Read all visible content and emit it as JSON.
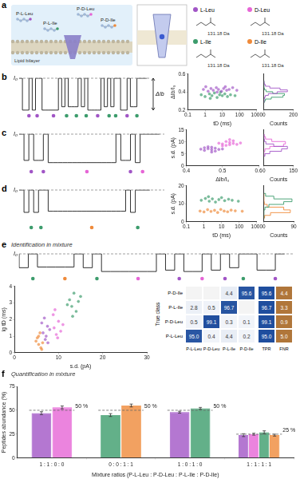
{
  "diagram": {
    "panel": "a",
    "peptides": [
      "P-L-Leu",
      "P-D-Leu",
      "P-L-Ile",
      "P-D-Ile"
    ],
    "membrane": "Lipid bilayer",
    "molecules": [
      {
        "name": "L-Leu",
        "mass": "131.18 Da",
        "color": "#a155c6"
      },
      {
        "name": "D-Leu",
        "mass": "131.18 Da",
        "color": "#e665d6"
      },
      {
        "name": "L-Ile",
        "mass": "131.18 Da",
        "color": "#3c9c6c"
      },
      {
        "name": "D-Ile",
        "mass": "131.18 Da",
        "color": "#ef8a3a"
      }
    ]
  },
  "chart_data": [
    {
      "panel": "b",
      "type": "trace",
      "annotations": [
        "I₀",
        "ΔIb"
      ],
      "baseline": 1,
      "tick_labels": false,
      "values": [
        1,
        1,
        0.62,
        0.62,
        1,
        0.62,
        1,
        1,
        0.62,
        0.62,
        0.62,
        0.62,
        0.62,
        1,
        0.66,
        1,
        0.66,
        0.66,
        0.66,
        1,
        0.66,
        1,
        0.62,
        0.62,
        0.62,
        0.62,
        1,
        0.66,
        1,
        0.66,
        1,
        1,
        0.62,
        0.62,
        1,
        0.66,
        0.66,
        1,
        1,
        1
      ],
      "events": {
        "x": [
          3,
          5.5,
          10.5,
          14.5,
          17.5,
          20.5,
          24,
          27.5,
          29.5,
          33,
          36
        ],
        "colors": [
          "#a155c6",
          "#a155c6",
          "#a155c6",
          "#3c9c6c",
          "#3c9c6c",
          "#3c9c6c",
          "#a155c6",
          "#3c9c6c",
          "#3c9c6c",
          "#a155c6",
          "#3c9c6c"
        ]
      }
    },
    {
      "type": "scatter",
      "x_label": "tD (ms)",
      "y_label": "ΔIb/I₀",
      "log": "x",
      "grid": false,
      "xlim": [
        0.1,
        1000
      ],
      "xticks": [
        0.1,
        1,
        10,
        100,
        1000
      ],
      "ylim": [
        0.2,
        0.6
      ],
      "yticks": [
        0.2,
        0.4,
        0.6
      ],
      "series": [
        {
          "color": "#a155c6",
          "x": [
            0.8,
            1.5,
            2.2,
            3,
            4.5,
            6,
            9,
            12,
            18,
            25,
            40,
            70,
            1.1,
            5,
            15
          ],
          "values": [
            0.43,
            0.41,
            0.44,
            0.42,
            0.45,
            0.43,
            0.41,
            0.44,
            0.42,
            0.43,
            0.45,
            0.42,
            0.46,
            0.4,
            0.46
          ]
        },
        {
          "color": "#3c9c6c",
          "x": [
            0.6,
            1,
            1.8,
            2.5,
            3.5,
            5,
            7,
            10,
            14,
            20,
            30,
            55,
            2,
            8
          ],
          "values": [
            0.37,
            0.35,
            0.38,
            0.36,
            0.39,
            0.34,
            0.37,
            0.36,
            0.38,
            0.35,
            0.37,
            0.36,
            0.33,
            0.4
          ]
        }
      ]
    },
    {
      "type": "histogram",
      "orientation": "horizontal",
      "x_label": "Counts",
      "tick_labels": "x",
      "grid": false,
      "xlim": [
        0,
        200
      ],
      "xticks": [
        0,
        200
      ],
      "ylim": [
        0.2,
        0.6
      ],
      "bins": [
        0.28,
        0.3,
        0.32,
        0.34,
        0.36,
        0.38,
        0.4,
        0.42,
        0.44,
        0.46,
        0.48,
        0.5,
        0.52
      ],
      "series": [
        {
          "color": "#a155c6",
          "values": [
            0,
            1,
            3,
            10,
            30,
            90,
            160,
            110,
            40,
            10,
            2,
            0
          ]
        },
        {
          "color": "#3c9c6c",
          "values": [
            2,
            10,
            50,
            130,
            140,
            60,
            15,
            4,
            1,
            0,
            0,
            0
          ]
        }
      ]
    },
    {
      "panel": "c",
      "type": "trace",
      "annotations": [
        "I₀"
      ],
      "baseline": 1,
      "tick_labels": false,
      "values": [
        1,
        1,
        0.53,
        1,
        0.53,
        0.53,
        1,
        0.49,
        0.49,
        0.49,
        0.49,
        0.49,
        0.49,
        0.49,
        0.49,
        0.49,
        0.49,
        0.49,
        0.49,
        0.49,
        0.49,
        1,
        0.53,
        0.53,
        1,
        0.49,
        1,
        1,
        1,
        1
      ],
      "events": {
        "x": [
          2.5,
          5,
          14,
          23,
          25.5
        ],
        "colors": [
          "#a155c6",
          "#a155c6",
          "#e665d6",
          "#a155c6",
          "#e665d6"
        ]
      }
    },
    {
      "type": "scatter",
      "x_label": "ΔIb/I₀",
      "y_label": "s.d. (pA)",
      "grid": false,
      "xlim": [
        0.4,
        0.6
      ],
      "xticks": [
        0.4,
        0.5,
        0.6
      ],
      "ylim": [
        0,
        15
      ],
      "yticks": [
        0,
        5,
        10,
        15
      ],
      "series": [
        {
          "color": "#a155c6",
          "x": [
            0.45,
            0.46,
            0.47,
            0.47,
            0.48,
            0.46,
            0.48,
            0.49,
            0.45,
            0.47,
            0.5,
            0.44
          ],
          "values": [
            6.5,
            7.2,
            6.8,
            7.8,
            6.2,
            8,
            7.4,
            6.9,
            7.6,
            5.8,
            7.1,
            7
          ]
        },
        {
          "color": "#e665d6",
          "x": [
            0.5,
            0.51,
            0.52,
            0.52,
            0.53,
            0.51,
            0.54,
            0.5,
            0.53,
            0.55,
            0.52,
            0.49
          ],
          "values": [
            9.2,
            8.6,
            9.8,
            8.9,
            9.4,
            10.2,
            9,
            8.4,
            10.5,
            9.6,
            11,
            9.5
          ]
        }
      ]
    },
    {
      "type": "histogram",
      "orientation": "horizontal",
      "x_label": "Counts",
      "tick_labels": "x",
      "grid": false,
      "xlim": [
        0,
        150
      ],
      "xticks": [
        0,
        150
      ],
      "ylim": [
        0,
        15
      ],
      "bins": [
        4,
        5,
        6,
        7,
        8,
        9,
        10,
        11,
        12,
        13
      ],
      "series": [
        {
          "color": "#a155c6",
          "values": [
            5,
            30,
            90,
            120,
            50,
            10,
            2,
            0,
            0
          ]
        },
        {
          "color": "#e665d6",
          "values": [
            0,
            0,
            5,
            30,
            100,
            110,
            40,
            8,
            1
          ]
        }
      ]
    },
    {
      "panel": "d",
      "type": "trace",
      "annotations": [
        "I₀"
      ],
      "baseline": 1,
      "tick_labels": false,
      "values": [
        1,
        1,
        0.6,
        1,
        0.6,
        1,
        1,
        0.62,
        0.62,
        0.62,
        0.62,
        0.62,
        0.62,
        0.62,
        0.62,
        0.62,
        0.62,
        0.62,
        0.62,
        0.62,
        0.62,
        0.62,
        0.62,
        1,
        0.6,
        1,
        1,
        1
      ],
      "events": {
        "x": [
          2.5,
          4.5,
          15,
          24.5
        ],
        "colors": [
          "#3c9c6c",
          "#3c9c6c",
          "#ef8a3a",
          "#3c9c6c"
        ]
      }
    },
    {
      "type": "scatter",
      "x_label": "tD (ms)",
      "y_label": "s.d. (pA)",
      "log": "x",
      "grid": false,
      "xlim": [
        0.1,
        1000
      ],
      "xticks": [
        0.1,
        1,
        10,
        100,
        1000
      ],
      "ylim": [
        0,
        20
      ],
      "yticks": [
        0,
        10,
        20
      ],
      "series": [
        {
          "color": "#3c9c6c",
          "x": [
            0.7,
            1.2,
            2,
            3,
            4.5,
            7,
            10,
            15,
            25,
            40,
            90,
            1.8
          ],
          "values": [
            12,
            13,
            11.5,
            12.8,
            11,
            12.4,
            13.5,
            11.8,
            12.6,
            12,
            11.5,
            14
          ]
        },
        {
          "color": "#ef8a3a",
          "x": [
            0.6,
            1,
            1.6,
            2.5,
            4,
            6,
            9,
            14,
            22,
            35,
            60,
            150
          ],
          "values": [
            6,
            5.5,
            6.8,
            5.8,
            6.4,
            5.2,
            6.9,
            6,
            5.6,
            6.5,
            6.1,
            5.9
          ]
        }
      ]
    },
    {
      "type": "histogram",
      "orientation": "horizontal",
      "x_label": "Counts",
      "tick_labels": "x",
      "grid": false,
      "xlim": [
        0,
        90
      ],
      "xticks": [
        0,
        90
      ],
      "ylim": [
        0,
        20
      ],
      "bins": [
        2,
        3.5,
        5,
        6.5,
        8,
        9.5,
        11,
        12.5,
        14,
        15.5
      ],
      "series": [
        {
          "color": "#3c9c6c",
          "values": [
            0,
            0,
            0,
            3,
            15,
            60,
            85,
            30,
            5
          ]
        },
        {
          "color": "#ef8a3a",
          "values": [
            2,
            20,
            80,
            60,
            10,
            1,
            0,
            0,
            0
          ]
        }
      ]
    },
    {
      "panel": "e",
      "title": "Identification in mixture",
      "type": "trace",
      "annotations": [
        "I₀"
      ],
      "baseline": 1,
      "tick_labels": false,
      "values": [
        1,
        0.6,
        1,
        0.62,
        0.62,
        0.62,
        0.62,
        1,
        0.6,
        1,
        0.49,
        0.49,
        0.49,
        0.49,
        0.49,
        0.49,
        1,
        0.53,
        1,
        0.49,
        0.49,
        1,
        0.53,
        1,
        0.6,
        1,
        1,
        0.53,
        0.53,
        1
      ],
      "events": {
        "x": [
          1.5,
          5,
          8.5,
          13,
          17.5,
          20,
          22.5,
          24.5,
          28
        ],
        "colors": [
          "#3c9c6c",
          "#ef8a3a",
          "#3c9c6c",
          "#e665d6",
          "#a155c6",
          "#e665d6",
          "#a155c6",
          "#3c9c6c",
          "#a155c6"
        ]
      }
    },
    {
      "type": "scatter",
      "x_label": "s.d. (pA)",
      "y_label": "lg tD (ms)",
      "grid": false,
      "xlim": [
        0,
        30
      ],
      "xticks": [
        0,
        10,
        20,
        30
      ],
      "ylim": [
        0,
        4
      ],
      "yticks": [
        0,
        1,
        2,
        3,
        4
      ],
      "series": [
        {
          "color": "#a155c6",
          "x": [
            6.5,
            7,
            7.5,
            6.8,
            7.2,
            8,
            6.2,
            7.6
          ],
          "values": [
            1.2,
            0.8,
            1.6,
            2.1,
            1.0,
            1.4,
            1.8,
            0.6
          ]
        },
        {
          "color": "#e665d6",
          "x": [
            9,
            9.5,
            10,
            8.8,
            10.5,
            9.8,
            11,
            9.2
          ],
          "values": [
            1.5,
            1.1,
            1.9,
            2.3,
            1.3,
            0.9,
            1.7,
            2.6
          ]
        },
        {
          "color": "#3c9c6c",
          "x": [
            13,
            12.5,
            14,
            13.5,
            12,
            14.5,
            13.2,
            15
          ],
          "values": [
            2.8,
            3.2,
            2.5,
            3.6,
            2.9,
            3.1,
            2.2,
            3.4
          ]
        },
        {
          "color": "#ef8a3a",
          "x": [
            5.5,
            6,
            5.2,
            6.4,
            5.8,
            4.9,
            6.2,
            5.5
          ],
          "values": [
            0.5,
            0.3,
            0.9,
            0.6,
            1.2,
            0.7,
            0.2,
            1.0
          ]
        }
      ]
    },
    {
      "panel": "f",
      "title": "Quantification in mixture",
      "type": "bar",
      "grid": false,
      "x_label": "Mixture ratios (P-L-Leu : P-D-Leu : P-L-Ile : P-D-Ile)",
      "y_label": "Peptides abundance (%)",
      "categories": [
        "1 : 1 : 0 : 0",
        "0 : 0 : 1 : 1",
        "1 : 0 : 1 : 0",
        "1 : 1 : 1 : 1"
      ],
      "ylim": [
        0,
        75
      ],
      "yticks": [
        0,
        25,
        50,
        75
      ],
      "series": [
        {
          "color": "#a155c6",
          "values": [
            47,
            null,
            48,
            24
          ],
          "errors": [
            1.5,
            null,
            1,
            1.5
          ]
        },
        {
          "color": "#e665d6",
          "values": [
            53,
            null,
            null,
            25
          ],
          "errors": [
            1.5,
            null,
            null,
            1
          ]
        },
        {
          "color": "#3c9c6c",
          "values": [
            null,
            45,
            52,
            27
          ],
          "errors": [
            null,
            1.5,
            1,
            1.5
          ]
        },
        {
          "color": "#ef8a3a",
          "values": [
            null,
            55,
            null,
            24
          ],
          "errors": [
            null,
            1.5,
            null,
            1
          ]
        }
      ],
      "references": [
        {
          "category": "1 : 1 : 0 : 0",
          "value": 50,
          "label": "50 %"
        },
        {
          "category": "0 : 0 : 1 : 1",
          "value": 50,
          "label": "50 %"
        },
        {
          "category": "1 : 0 : 1 : 0",
          "value": 50,
          "label": "50 %"
        },
        {
          "category": "1 : 1 : 1 : 1",
          "value": 25,
          "label": "25 %"
        }
      ]
    }
  ],
  "table": {
    "row_title": "True class",
    "columns": [
      "P-L-Leu",
      "P-D-Leu",
      "P-L-Ile",
      "P-D-Ile",
      "TPR",
      "FNR"
    ],
    "rows": [
      {
        "label": "P-D-Ile",
        "cells": [
          null,
          null,
          "4.4",
          "95.6",
          "95.6",
          "4.4"
        ]
      },
      {
        "label": "P-L-Ile",
        "cells": [
          "2.8",
          "0.5",
          "96.7",
          null,
          "96.7",
          "3.3"
        ]
      },
      {
        "label": "P-D-Leu",
        "cells": [
          "0.5",
          "99.1",
          "0.3",
          "0.1",
          "99.1",
          "0.9"
        ]
      },
      {
        "label": "P-L-Leu",
        "cells": [
          "95.0",
          "0.4",
          "4.4",
          "0.2",
          "95.0",
          "5.0"
        ]
      }
    ]
  }
}
